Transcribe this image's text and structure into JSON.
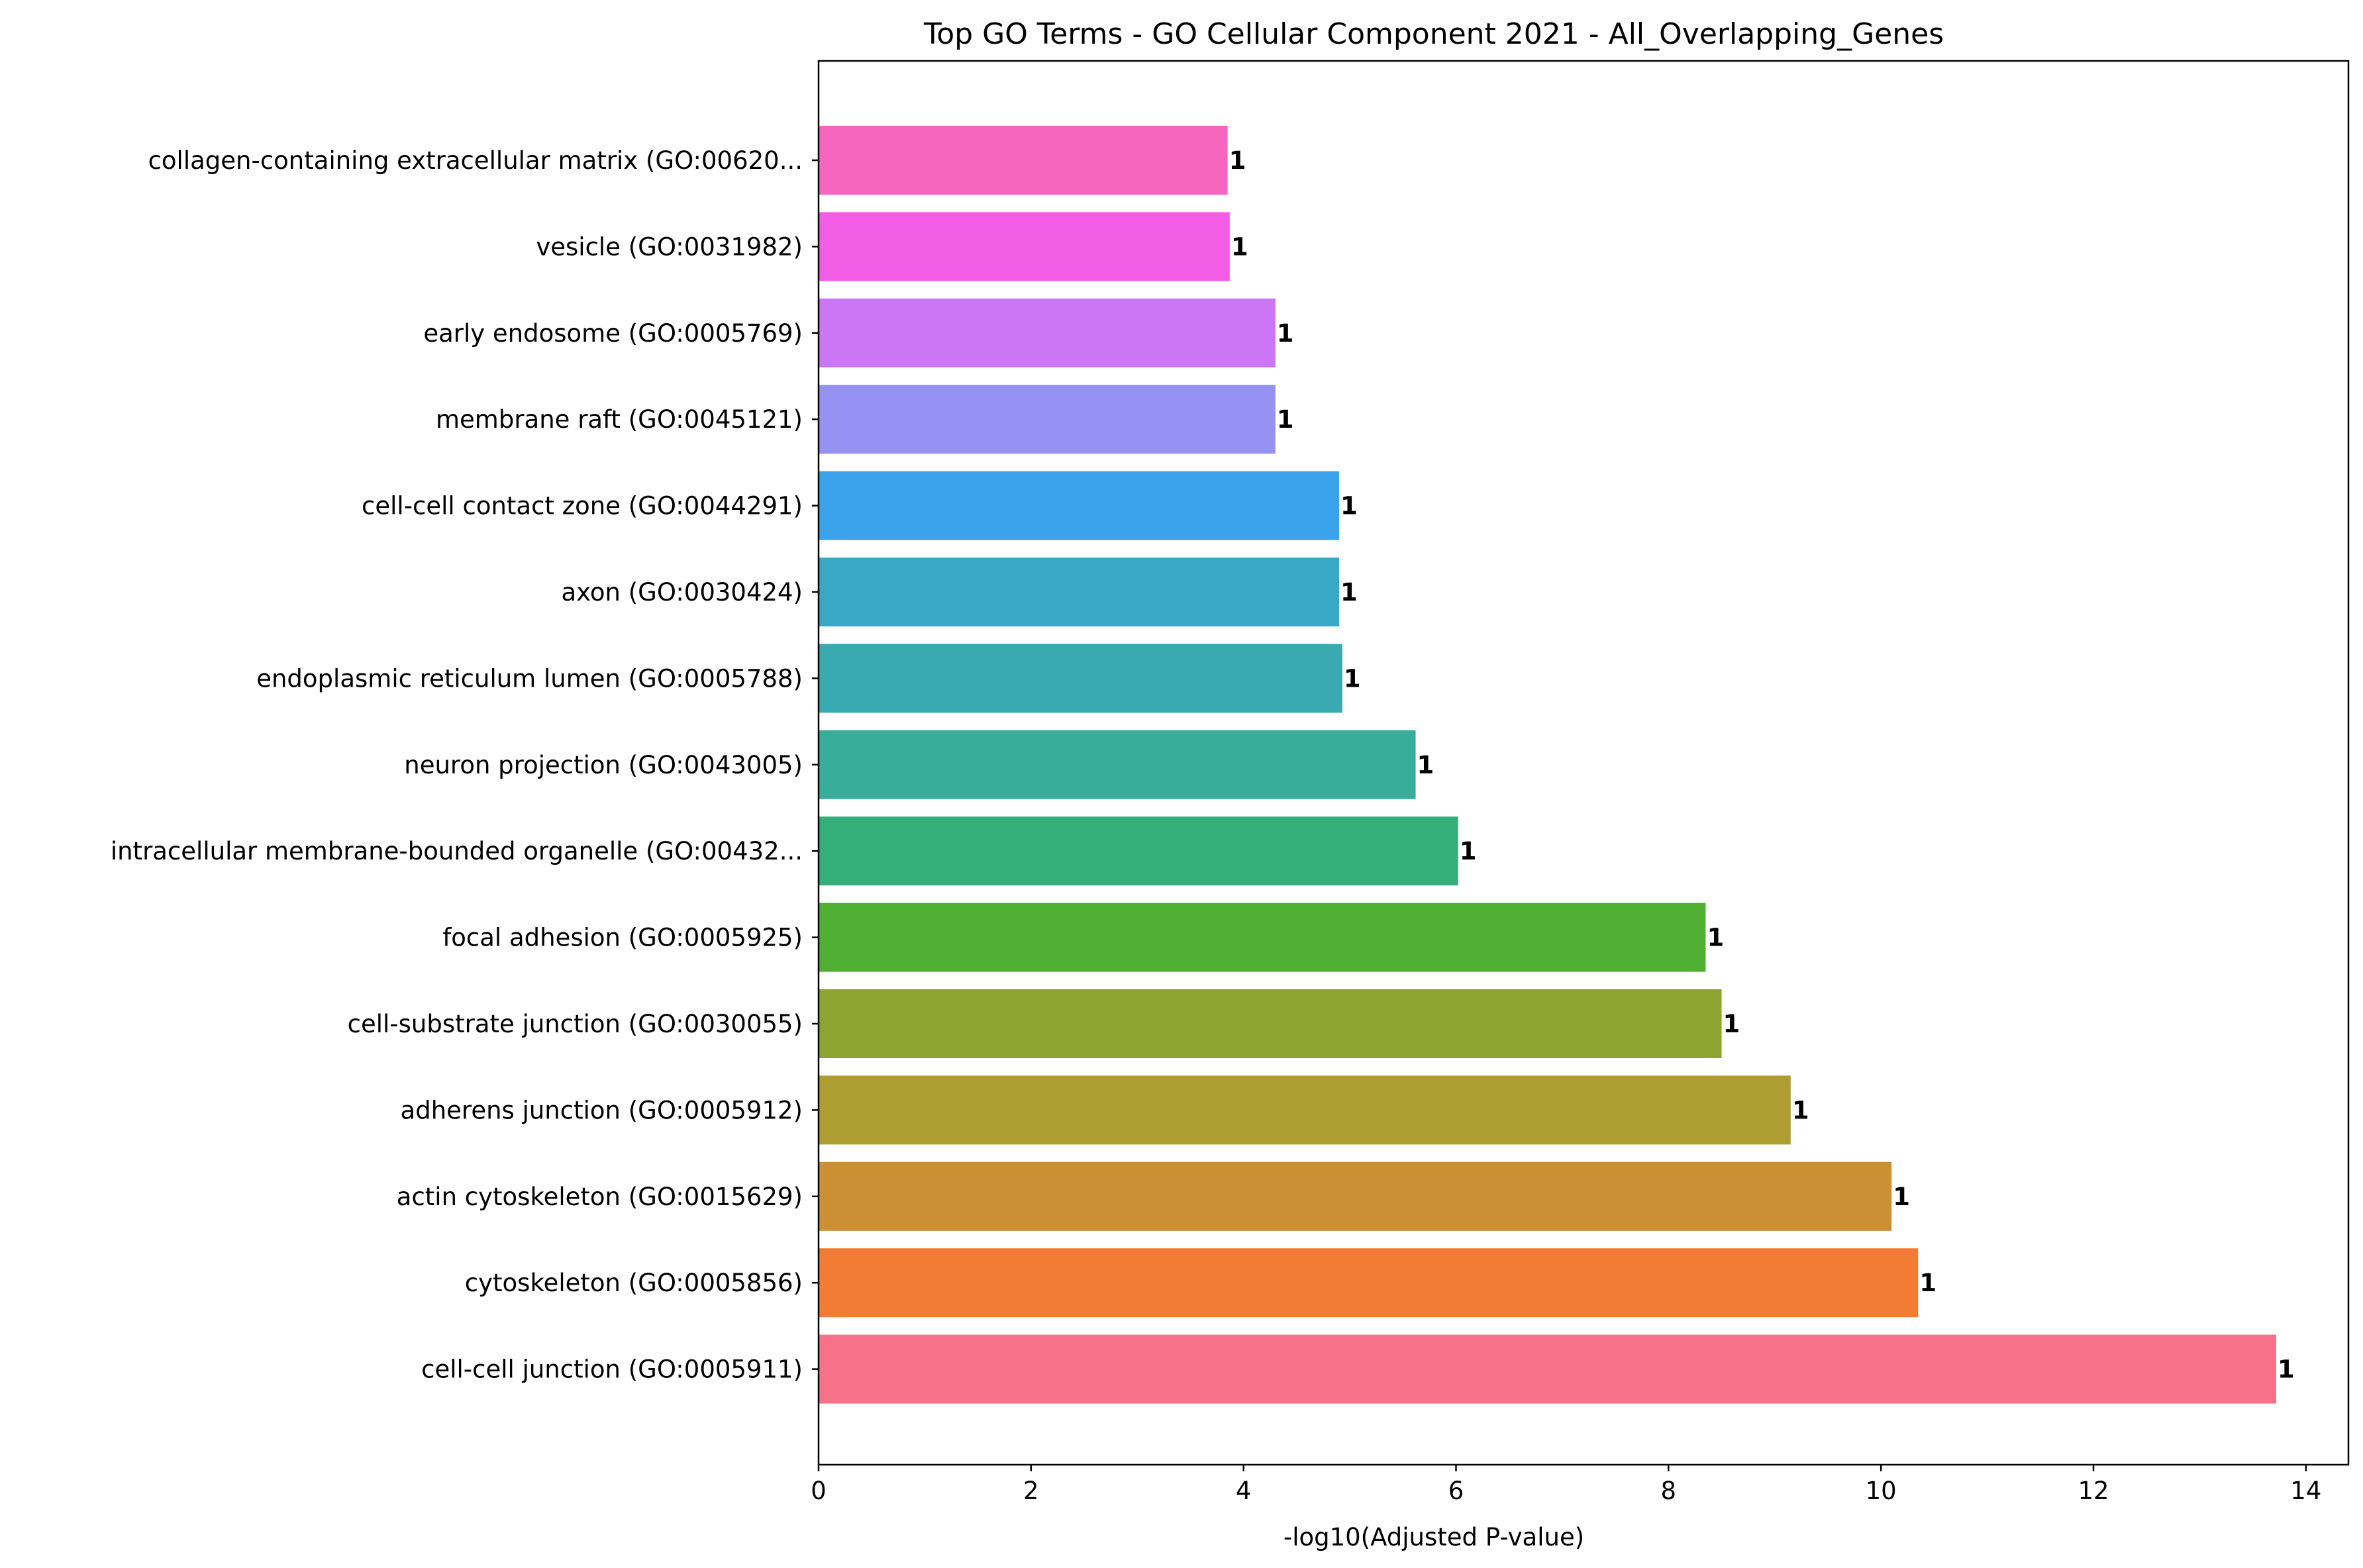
{
  "chart_data": {
    "type": "bar",
    "orientation": "horizontal",
    "title": "Top GO Terms - GO Cellular Component 2021 - All_Overlapping_Genes",
    "xlabel": "-log10(Adjusted P-value)",
    "ylabel": "",
    "xlim": [
      0,
      14.4
    ],
    "xticks": [
      "0",
      "2",
      "4",
      "6",
      "8",
      "10",
      "12",
      "14"
    ],
    "grid": false,
    "legend": "none",
    "categories": [
      "collagen-containing extracellular matrix (GO:00620...",
      "vesicle (GO:0031982)",
      "early endosome (GO:0005769)",
      "membrane raft (GO:0045121)",
      "cell-cell contact zone (GO:0044291)",
      "axon (GO:0030424)",
      "endoplasmic reticulum lumen (GO:0005788)",
      "neuron projection (GO:0043005)",
      "intracellular membrane-bounded organelle (GO:00432...",
      "focal adhesion (GO:0005925)",
      "cell-substrate junction (GO:0030055)",
      "adherens junction (GO:0005912)",
      "actin cytoskeleton (GO:0015629)",
      "cytoskeleton (GO:0005856)",
      "cell-cell junction (GO:0005911)"
    ],
    "values": [
      3.85,
      3.87,
      4.3,
      4.3,
      4.9,
      4.9,
      4.93,
      5.62,
      6.02,
      8.35,
      8.5,
      9.15,
      10.1,
      10.35,
      13.72
    ],
    "data_labels": [
      "1",
      "1",
      "1",
      "1",
      "1",
      "1",
      "1",
      "1",
      "1",
      "1",
      "1",
      "1",
      "1",
      "1",
      "1"
    ],
    "colors": [
      "#f766be",
      "#f35ce5",
      "#cb76f4",
      "#9692f4",
      "#3ba3ec",
      "#39a7c6",
      "#38aab0",
      "#37ad9a",
      "#34af79",
      "#50b033",
      "#8fa333",
      "#ae9d31",
      "#cc8f33",
      "#f37c34",
      "#f77189"
    ]
  }
}
